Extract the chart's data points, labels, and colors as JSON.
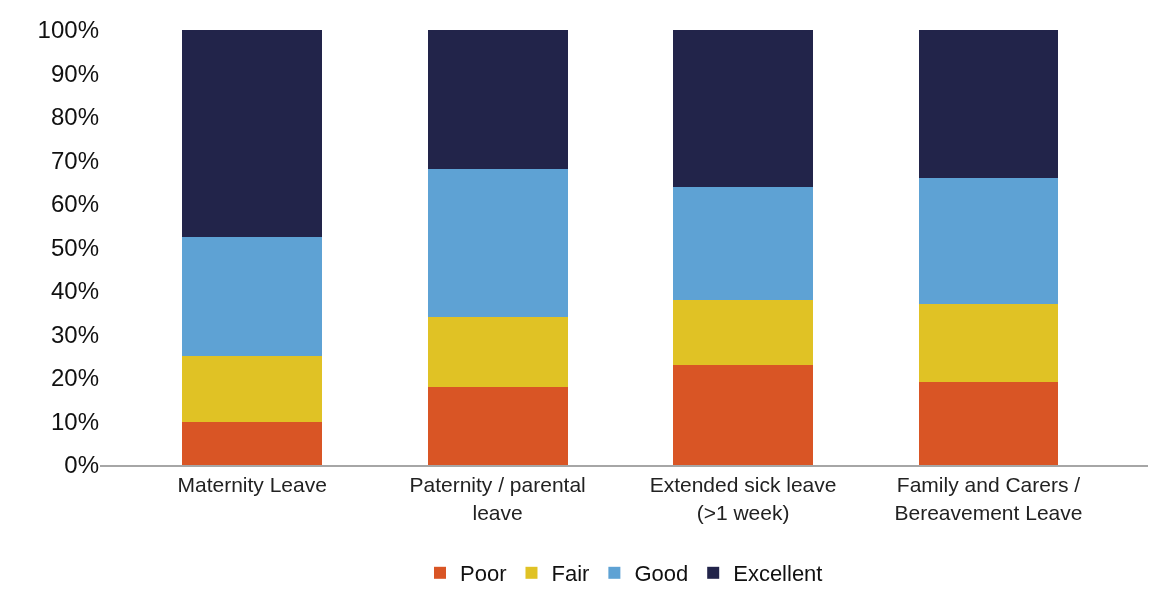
{
  "chart_data": {
    "type": "bar",
    "stacked": true,
    "categories": [
      "Maternity Leave",
      "Paternity / parental leave",
      "Extended sick leave (>1 week)",
      "Family and Carers / Bereavement Leave"
    ],
    "series": [
      {
        "name": "Poor",
        "color": "#d95525",
        "values": [
          10,
          18,
          23,
          19
        ]
      },
      {
        "name": "Fair",
        "color": "#e0c225",
        "values": [
          15,
          16,
          15,
          18
        ]
      },
      {
        "name": "Good",
        "color": "#5ea2d4",
        "values": [
          27.5,
          34,
          26,
          29
        ]
      },
      {
        "name": "Excellent",
        "color": "#22244a",
        "values": [
          47.5,
          32,
          36,
          34
        ]
      }
    ],
    "ylim": [
      0,
      100
    ],
    "yticks": [
      {
        "value": 0,
        "label": "0%"
      },
      {
        "value": 10,
        "label": "10%"
      },
      {
        "value": 20,
        "label": "20%"
      },
      {
        "value": 30,
        "label": "30%"
      },
      {
        "value": 40,
        "label": "40%"
      },
      {
        "value": 50,
        "label": "50%"
      },
      {
        "value": 60,
        "label": "60%"
      },
      {
        "value": 70,
        "label": "70%"
      },
      {
        "value": 80,
        "label": "80%"
      },
      {
        "value": 90,
        "label": "90%"
      },
      {
        "value": 100,
        "label": "100%"
      }
    ],
    "legend": "bottom"
  }
}
